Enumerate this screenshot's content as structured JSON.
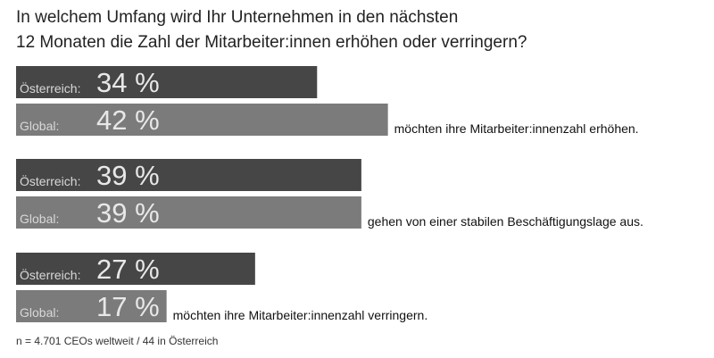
{
  "chart_data": {
    "type": "bar",
    "title": [
      "In welchem Umfang wird Ihr Unternehmen in den nächsten",
      "12 Monaten die Zahl der Mitarbeiter:innen erhöhen oder verringern?"
    ],
    "categories": [
      "möchten ihre Mitarbeiter:innenzahl erhöhen.",
      "gehen von einer stabilen Beschäftigungslage aus.",
      "möchten ihre Mitarbeiter:innenzahl verringern."
    ],
    "series": [
      {
        "name": "Österreich:",
        "color": "#464646",
        "values": [
          34,
          39,
          27
        ],
        "value_labels": [
          "34 %",
          "39 %",
          "27 %"
        ]
      },
      {
        "name": "Global:",
        "color": "#7b7b7b",
        "values": [
          42,
          39,
          17
        ],
        "value_labels": [
          "42 %",
          "39 %",
          "17 %"
        ]
      }
    ],
    "footnote": "n = 4.701 CEOs weltweit / 44 in Österreich"
  }
}
